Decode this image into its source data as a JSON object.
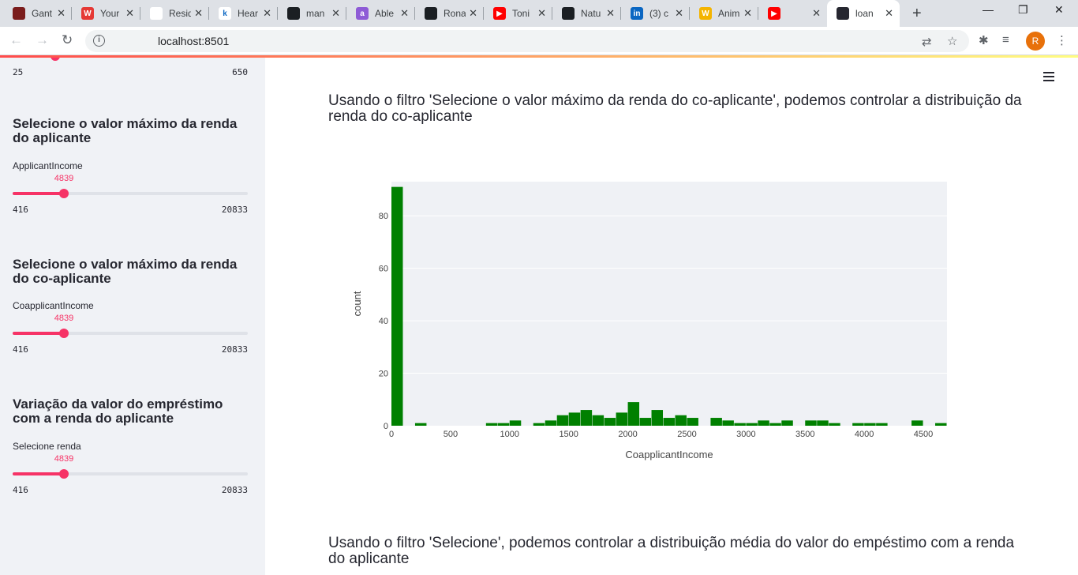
{
  "browser": {
    "tabs": [
      {
        "title": "Gant",
        "fav_color": "#7a1c1c",
        "fav_text": ""
      },
      {
        "title": "Your",
        "fav_color": "#e53935",
        "fav_text": "W"
      },
      {
        "title": "Resid",
        "fav_color": "#ffffff",
        "fav_text": ""
      },
      {
        "title": "Hear",
        "fav_color": "#ffffff",
        "fav_text": "k"
      },
      {
        "title": "man",
        "fav_color": "#1b1f23",
        "fav_text": ""
      },
      {
        "title": "Able",
        "fav_color": "#8e5bd6",
        "fav_text": "a"
      },
      {
        "title": "Rona",
        "fav_color": "#1b1f23",
        "fav_text": ""
      },
      {
        "title": "Toni",
        "fav_color": "#ff0000",
        "fav_text": "▶"
      },
      {
        "title": "Natu",
        "fav_color": "#1b1f23",
        "fav_text": ""
      },
      {
        "title": "(3) c",
        "fav_color": "#0a66c2",
        "fav_text": "in"
      },
      {
        "title": "Anim",
        "fav_color": "#f4b400",
        "fav_text": "W"
      },
      {
        "title": "",
        "fav_color": "#ff0000",
        "fav_text": "▶"
      },
      {
        "title": "loan",
        "fav_color": "#262730",
        "fav_text": ""
      }
    ],
    "url": "localhost:8501",
    "avatar_letter": "R"
  },
  "sidebar": {
    "top_slider": {
      "min": "25",
      "max": "650"
    },
    "applicant": {
      "title": "Selecione o valor máximo da renda do aplicante",
      "label": "ApplicantIncome",
      "value": "4839",
      "min": "416",
      "max": "20833",
      "fraction": 0.218
    },
    "coapplicant": {
      "title": "Selecione o valor máximo da renda do co-aplicante",
      "label": "CoapplicantIncome",
      "value": "4839",
      "min": "416",
      "max": "20833",
      "fraction": 0.218
    },
    "loan": {
      "title": "Variação da valor do empréstimo com a renda do aplicante",
      "label": "Selecione renda",
      "value": "4839",
      "min": "416",
      "max": "20833",
      "fraction": 0.218
    }
  },
  "main": {
    "para1": "Usando o filtro 'Selecione o valor máximo da renda do co-aplicante', podemos controlar a distribuição da renda do co-aplicante",
    "para2": "Usando o filtro 'Selecione', podemos controlar a distribuição média do valor do empéstimo com a renda do aplicante"
  },
  "colors": {
    "accent": "#f63366",
    "bar": "#008000",
    "plot_bg": "#eff1f5"
  },
  "chart_data": {
    "type": "bar",
    "xlabel": "CoapplicantIncome",
    "ylabel": "count",
    "xlim": [
      0,
      4700
    ],
    "ylim": [
      0,
      93
    ],
    "xticks": [
      0,
      500,
      1000,
      1500,
      2000,
      2500,
      3000,
      3500,
      4000,
      4500
    ],
    "yticks": [
      0,
      20,
      40,
      60,
      80
    ],
    "bin_width": 100,
    "bins": [
      {
        "x0": 0,
        "count": 91
      },
      {
        "x0": 200,
        "count": 1
      },
      {
        "x0": 800,
        "count": 1
      },
      {
        "x0": 900,
        "count": 1
      },
      {
        "x0": 1000,
        "count": 2
      },
      {
        "x0": 1200,
        "count": 1
      },
      {
        "x0": 1300,
        "count": 2
      },
      {
        "x0": 1400,
        "count": 4
      },
      {
        "x0": 1500,
        "count": 5
      },
      {
        "x0": 1600,
        "count": 6
      },
      {
        "x0": 1700,
        "count": 4
      },
      {
        "x0": 1800,
        "count": 3
      },
      {
        "x0": 1900,
        "count": 5
      },
      {
        "x0": 2000,
        "count": 9
      },
      {
        "x0": 2100,
        "count": 3
      },
      {
        "x0": 2200,
        "count": 6
      },
      {
        "x0": 2300,
        "count": 3
      },
      {
        "x0": 2400,
        "count": 4
      },
      {
        "x0": 2500,
        "count": 3
      },
      {
        "x0": 2700,
        "count": 3
      },
      {
        "x0": 2800,
        "count": 2
      },
      {
        "x0": 2900,
        "count": 1
      },
      {
        "x0": 3000,
        "count": 1
      },
      {
        "x0": 3100,
        "count": 2
      },
      {
        "x0": 3200,
        "count": 1
      },
      {
        "x0": 3300,
        "count": 2
      },
      {
        "x0": 3500,
        "count": 2
      },
      {
        "x0": 3600,
        "count": 2
      },
      {
        "x0": 3700,
        "count": 1
      },
      {
        "x0": 3900,
        "count": 1
      },
      {
        "x0": 4000,
        "count": 1
      },
      {
        "x0": 4100,
        "count": 1
      },
      {
        "x0": 4400,
        "count": 2
      },
      {
        "x0": 4600,
        "count": 1
      }
    ]
  }
}
